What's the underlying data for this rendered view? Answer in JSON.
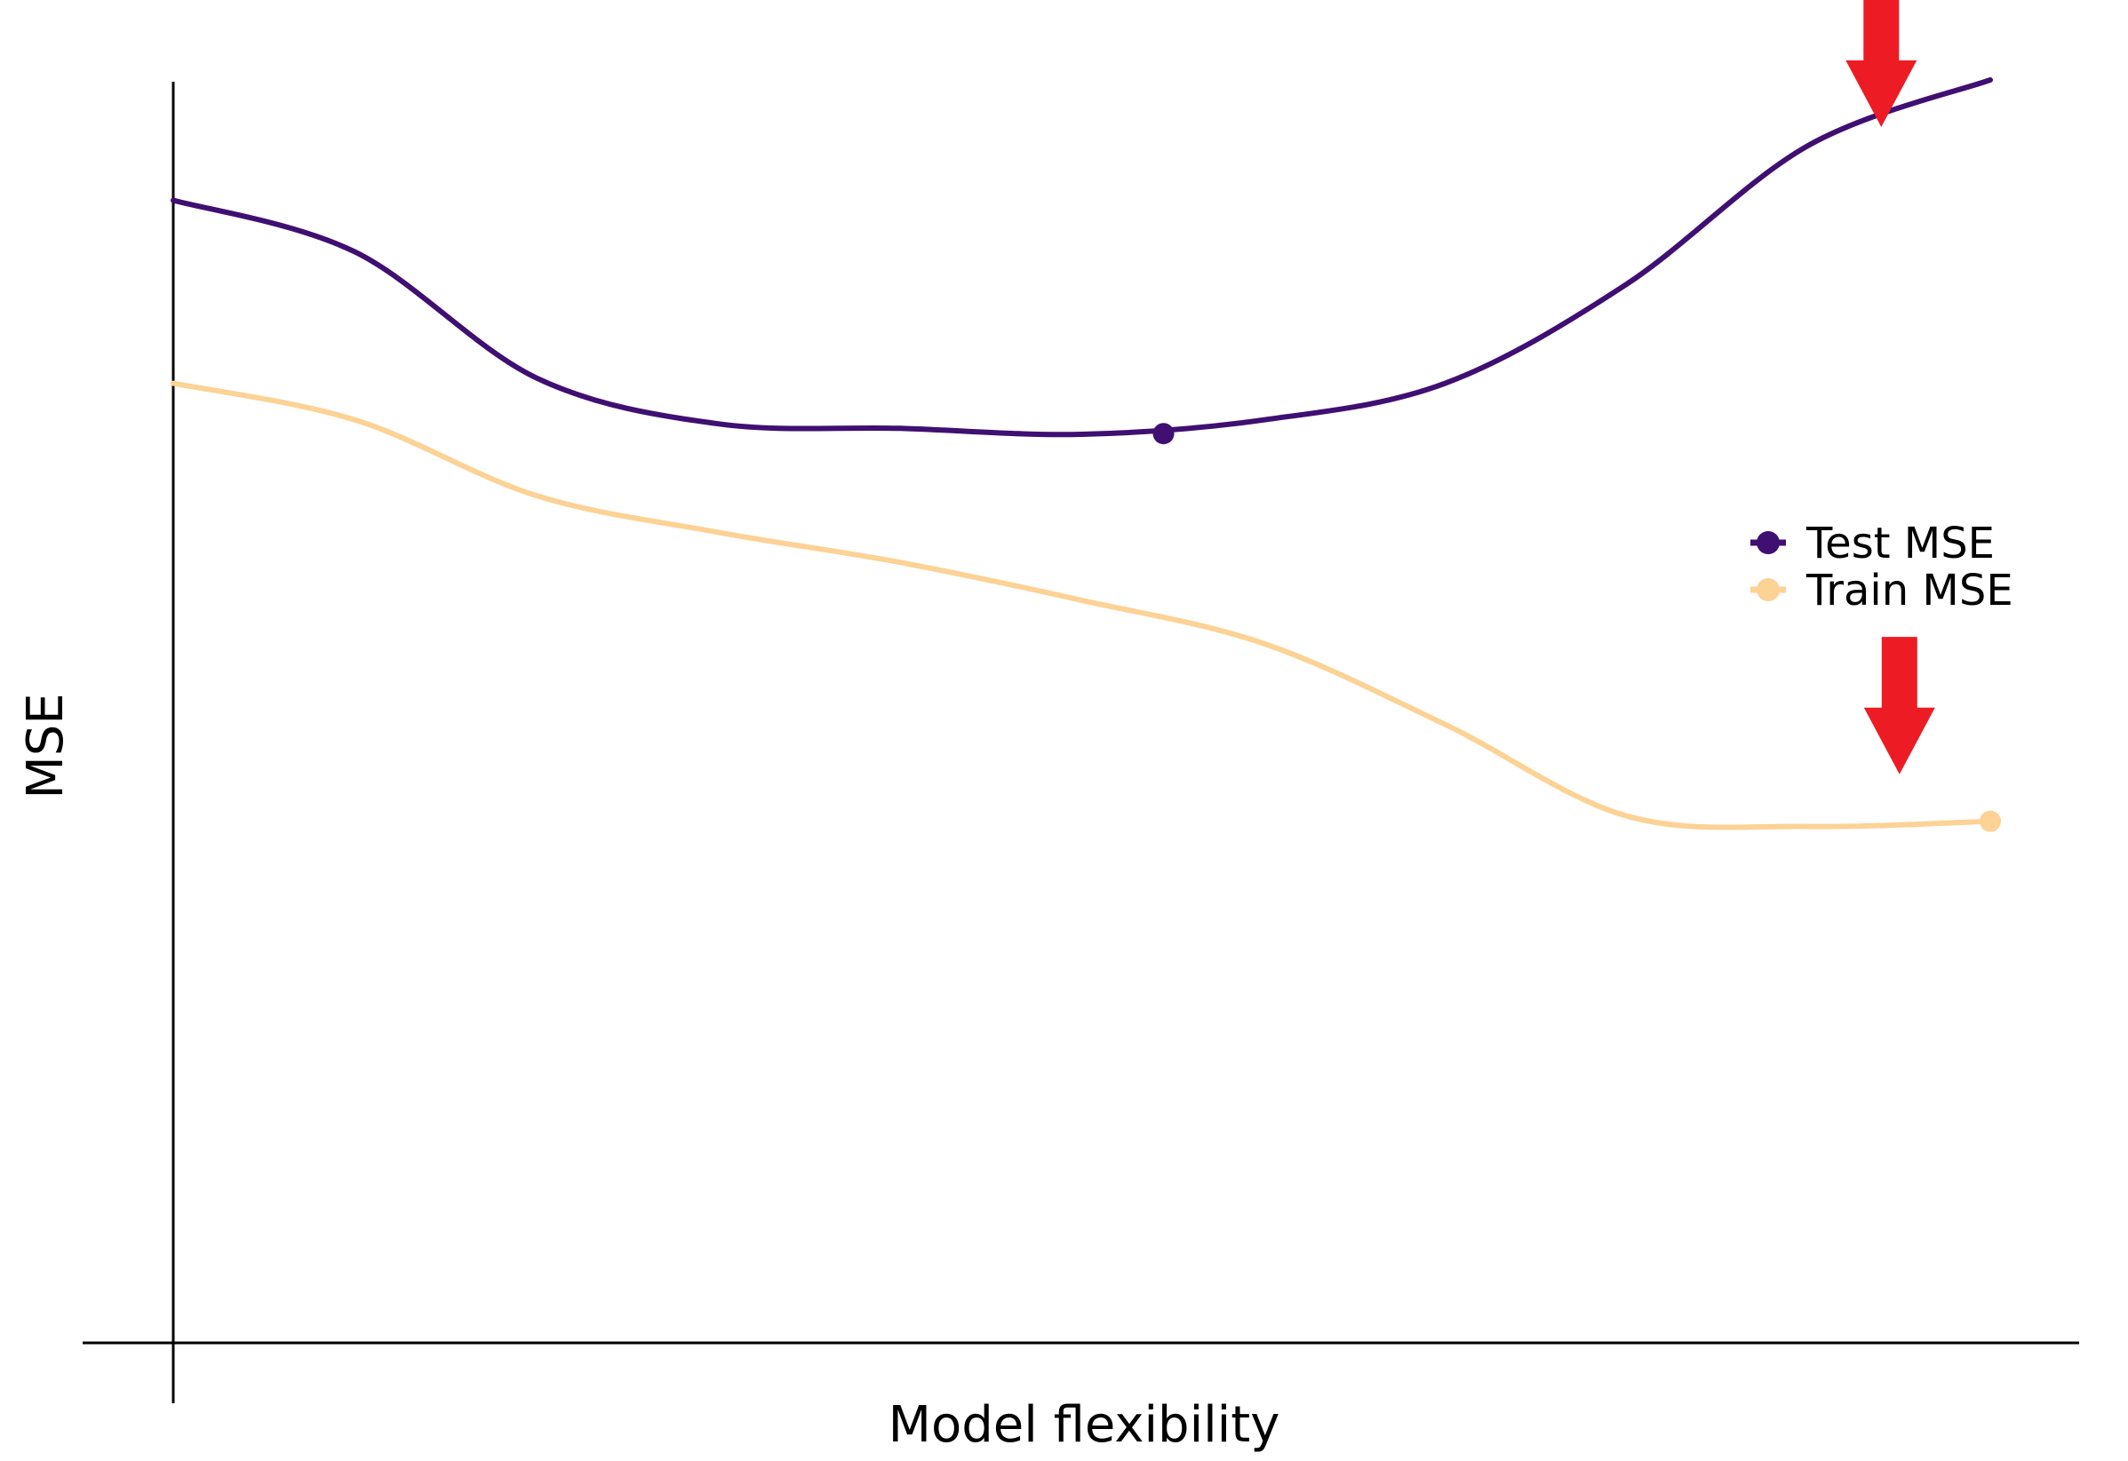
{
  "chart_data": {
    "type": "line",
    "title": "",
    "xlabel": "Model flexibility",
    "ylabel": "MSE",
    "grid": false,
    "legend_position": "right",
    "xlim": [
      0,
      1
    ],
    "ylim": [
      0,
      1
    ],
    "series": [
      {
        "name": "Test MSE",
        "color": "#3f0f72",
        "x": [
          0.0,
          0.1,
          0.2,
          0.3,
          0.4,
          0.5,
          0.6,
          0.7,
          0.8,
          0.9,
          1.0
        ],
        "y": [
          0.874,
          0.8345,
          0.738,
          0.703,
          0.6995,
          0.695,
          0.706,
          0.734,
          0.81,
          0.916,
          0.966
        ],
        "marker": {
          "x": 0.545,
          "y": 0.6955,
          "label": "min"
        }
      },
      {
        "name": "Train MSE",
        "color": "#fcd295",
        "x": [
          0.0,
          0.1,
          0.2,
          0.3,
          0.4,
          0.5,
          0.6,
          0.7,
          0.8,
          0.9,
          1.0
        ],
        "y": [
          0.734,
          0.706,
          0.648,
          0.62,
          0.597,
          0.568,
          0.535,
          0.473,
          0.403,
          0.395,
          0.399
        ],
        "marker": {
          "x": 1.0,
          "y": 0.399,
          "label": "min"
        }
      }
    ],
    "annotations": [
      {
        "type": "arrow",
        "icon": "red-down-arrow-icon",
        "color": "#ed1c24",
        "x": 0.94,
        "y_from": 1.03,
        "y_to": 0.93,
        "target": "Test MSE"
      },
      {
        "type": "arrow",
        "icon": "red-down-arrow-icon",
        "color": "#ed1c24",
        "x": 0.95,
        "y_from": 0.54,
        "y_to": 0.435,
        "target": "Train MSE"
      }
    ]
  }
}
